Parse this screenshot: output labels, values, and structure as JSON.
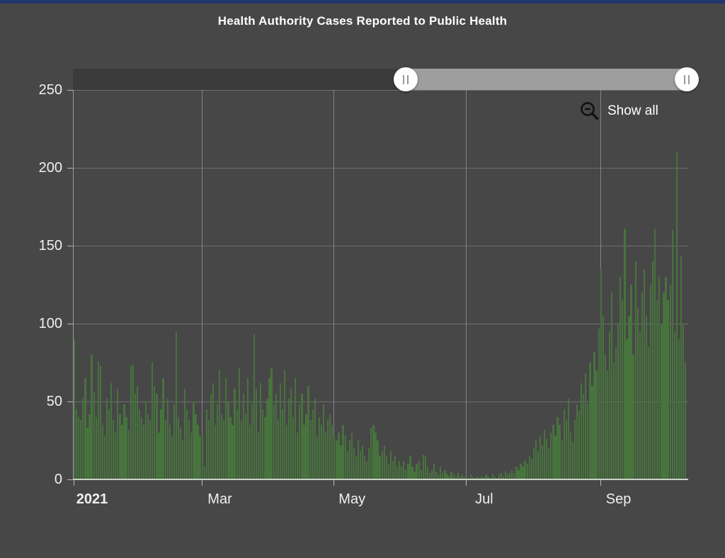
{
  "app": {
    "background_color": "#474747",
    "top_accent_color": "#20386e"
  },
  "header": {
    "title": "Health Authority Cases Reported to Public Health"
  },
  "time_slider": {
    "unselected_range_color": "#3b3b3b",
    "selected_range_color": "#9e9e9e",
    "left_handle_icon": "drag-grip",
    "right_handle_icon": "drag-grip"
  },
  "controls": {
    "show_all_label": "Show all",
    "zoom_out_icon": "magnifier-minus"
  },
  "chart_data": {
    "type": "bar",
    "title": "Health Authority Cases Reported to Public Health",
    "xlabel": "",
    "ylabel": "",
    "ylim": [
      0,
      250
    ],
    "y_ticks": [
      0,
      50,
      100,
      150,
      200,
      250
    ],
    "x_ticks": [
      {
        "label": "2021",
        "day": 0,
        "bold": true
      },
      {
        "label": "Mar",
        "day": 59,
        "bold": false
      },
      {
        "label": "May",
        "day": 120,
        "bold": false
      },
      {
        "label": "Jul",
        "day": 181,
        "bold": false
      },
      {
        "label": "Sep",
        "day": 243,
        "bold": false
      }
    ],
    "grid": "on",
    "legend": "none",
    "bar_color": "#47733d",
    "frequency": "daily",
    "values": [
      90,
      45,
      40,
      38,
      52,
      65,
      33,
      42,
      80,
      56,
      40,
      76,
      73,
      35,
      28,
      52,
      45,
      62,
      38,
      30,
      58,
      42,
      35,
      48,
      40,
      32,
      73,
      74,
      55,
      60,
      45,
      40,
      35,
      50,
      42,
      38,
      75,
      60,
      55,
      30,
      45,
      65,
      38,
      52,
      35,
      28,
      48,
      95,
      40,
      33,
      25,
      58,
      45,
      38,
      30,
      50,
      42,
      35,
      28,
      30,
      8,
      45,
      38,
      55,
      62,
      35,
      48,
      70,
      42,
      38,
      65,
      50,
      40,
      35,
      58,
      45,
      72,
      38,
      55,
      42,
      65,
      35,
      48,
      93,
      58,
      30,
      62,
      45,
      40,
      52,
      65,
      72,
      48,
      55,
      38,
      62,
      45,
      70,
      35,
      52,
      58,
      40,
      65,
      30,
      48,
      55,
      35,
      42,
      60,
      38,
      45,
      52,
      28,
      40,
      35,
      48,
      30,
      38,
      42,
      35,
      28,
      25,
      30,
      22,
      35,
      28,
      18,
      25,
      30,
      20,
      15,
      25,
      18,
      22,
      15,
      12,
      20,
      33,
      35,
      30,
      25,
      15,
      18,
      22,
      15,
      10,
      18,
      12,
      15,
      8,
      12,
      8,
      12,
      6,
      10,
      15,
      8,
      5,
      10,
      12,
      6,
      16,
      15,
      8,
      4,
      6,
      10,
      5,
      3,
      8,
      4,
      6,
      3,
      2,
      5,
      3,
      2,
      4,
      2,
      3,
      2,
      2,
      1,
      3,
      2,
      1,
      2,
      1,
      2,
      1,
      3,
      2,
      1,
      3,
      2,
      1,
      3,
      4,
      2,
      5,
      3,
      4,
      6,
      4,
      8,
      6,
      10,
      8,
      12,
      10,
      15,
      13,
      20,
      25,
      18,
      28,
      22,
      32,
      26,
      20,
      30,
      35,
      28,
      40,
      35,
      25,
      45,
      38,
      52,
      30,
      24,
      38,
      48,
      44,
      62,
      55,
      68,
      48,
      75,
      60,
      82,
      70,
      97,
      135,
      105,
      80,
      70,
      95,
      120,
      75,
      85,
      100,
      130,
      115,
      161,
      90,
      105,
      125,
      80,
      140,
      110,
      95,
      120,
      135,
      105,
      85,
      125,
      140,
      161,
      115,
      130,
      100,
      120,
      130,
      115,
      125,
      160,
      95,
      210,
      90,
      143,
      100,
      75
    ]
  }
}
